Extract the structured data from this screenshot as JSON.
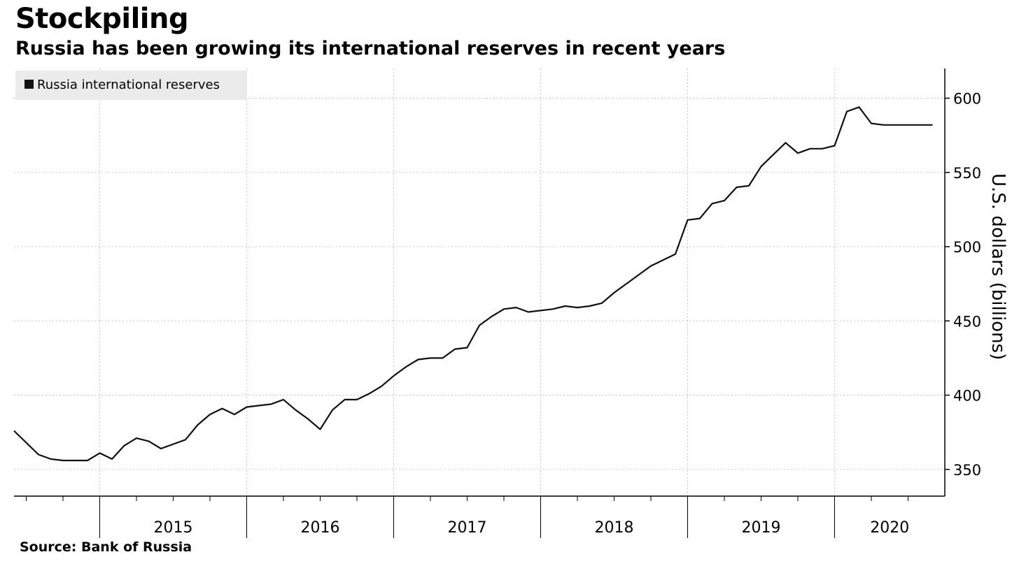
{
  "header": {
    "title": "Stockpiling",
    "subtitle": "Russia has been growing its international reserves in recent years"
  },
  "footer": {
    "source": "Source: Bank of Russia"
  },
  "colors": {
    "line": "#111111",
    "grid": "#c8c8c8",
    "legend_bg": "#ebebeb",
    "background": "#ffffff"
  },
  "chart_data": {
    "type": "line",
    "title": "Stockpiling",
    "subtitle": "Russia has been growing its international reserves in recent years",
    "ylabel": "U.S. dollars (billions)",
    "xlabel": "",
    "ylim": [
      332,
      620
    ],
    "yticks": [
      350,
      400,
      450,
      500,
      550,
      600
    ],
    "y_axis_side": "right",
    "x_range": [
      "2014-06",
      "2020-10"
    ],
    "x_ticks": [
      "2015",
      "2016",
      "2017",
      "2018",
      "2019",
      "2020"
    ],
    "grid": true,
    "legend_position": "top-left",
    "series": [
      {
        "name": "Russia international reserves",
        "x": [
          "2014-06",
          "2014-07",
          "2014-08",
          "2014-09",
          "2014-10",
          "2014-11",
          "2014-12",
          "2015-01",
          "2015-02",
          "2015-03",
          "2015-04",
          "2015-05",
          "2015-06",
          "2015-07",
          "2015-08",
          "2015-09",
          "2015-10",
          "2015-11",
          "2015-12",
          "2016-01",
          "2016-02",
          "2016-03",
          "2016-04",
          "2016-05",
          "2016-06",
          "2016-07",
          "2016-08",
          "2016-09",
          "2016-10",
          "2016-11",
          "2016-12",
          "2017-01",
          "2017-02",
          "2017-03",
          "2017-04",
          "2017-05",
          "2017-06",
          "2017-07",
          "2017-08",
          "2017-09",
          "2017-10",
          "2017-11",
          "2017-12",
          "2018-01",
          "2018-02",
          "2018-03",
          "2018-04",
          "2018-05",
          "2018-06",
          "2018-07",
          "2018-08",
          "2018-09",
          "2018-10",
          "2018-11",
          "2018-12",
          "2019-01",
          "2019-02",
          "2019-03",
          "2019-04",
          "2019-05",
          "2019-06",
          "2019-07",
          "2019-08",
          "2019-09",
          "2019-10",
          "2019-11",
          "2019-12",
          "2020-01",
          "2020-02",
          "2020-03",
          "2020-04",
          "2020-05",
          "2020-06",
          "2020-07",
          "2020-08",
          "2020-09"
        ],
        "values": [
          376,
          368,
          360,
          357,
          356,
          356,
          356,
          361,
          357,
          366,
          371,
          369,
          364,
          367,
          370,
          380,
          387,
          391,
          387,
          392,
          393,
          394,
          397,
          390,
          384,
          377,
          390,
          397,
          397,
          401,
          406,
          413,
          419,
          424,
          425,
          425,
          431,
          432,
          447,
          453,
          458,
          459,
          456,
          457,
          458,
          460,
          459,
          460,
          462,
          469,
          475,
          481,
          487,
          491,
          495,
          518,
          519,
          529,
          531,
          540,
          541,
          554,
          562,
          570,
          563,
          566,
          566,
          568,
          591,
          594,
          583,
          582,
          582,
          582,
          582,
          582
        ]
      }
    ]
  }
}
